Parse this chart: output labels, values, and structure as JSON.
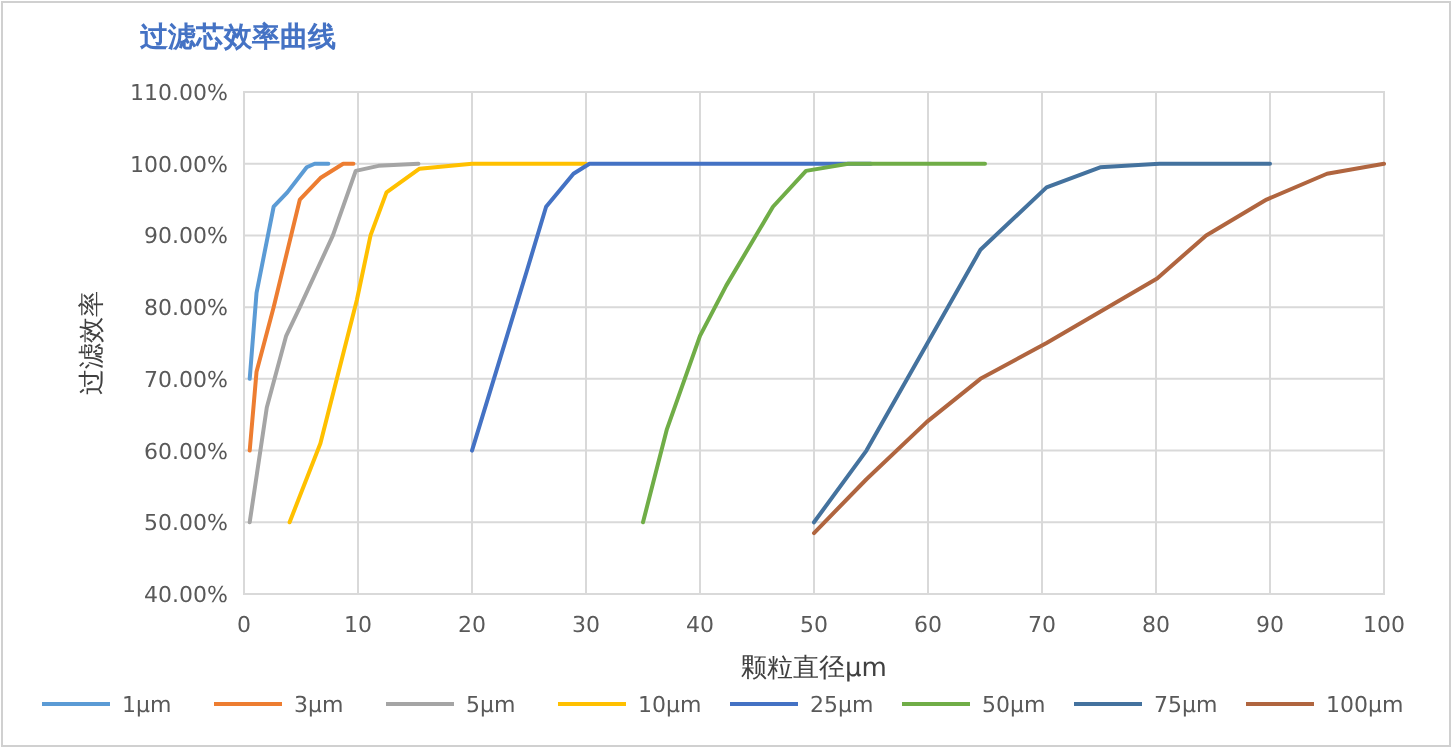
{
  "chart_data": {
    "type": "line",
    "title": "过滤芯效率曲线",
    "xlabel": "颗粒直径μm",
    "ylabel": "过滤效率",
    "xlim": [
      0,
      100
    ],
    "xticks": [
      0,
      10,
      20,
      30,
      40,
      50,
      60,
      70,
      80,
      90,
      100
    ],
    "ylim": [
      40,
      110
    ],
    "yticks": [
      {
        "value": 40,
        "label": "40.00%"
      },
      {
        "value": 50,
        "label": "50.00%"
      },
      {
        "value": 60,
        "label": "60.00%"
      },
      {
        "value": 70,
        "label": "70.00%"
      },
      {
        "value": 80,
        "label": "80.00%"
      },
      {
        "value": 90,
        "label": "90.00%"
      },
      {
        "value": 100,
        "label": "100.00%"
      },
      {
        "value": 110,
        "label": "110.00%"
      }
    ],
    "grid": true,
    "legend": "bottom",
    "marker": "none",
    "line_style": "solid",
    "series": [
      {
        "name": "1μm",
        "color": "#5b9bd5",
        "x": [
          0.5,
          1.1,
          2.6,
          3.8,
          5.5,
          6.2,
          7.4
        ],
        "values": [
          70,
          82,
          94,
          96,
          99.5,
          100,
          100
        ]
      },
      {
        "name": "3μm",
        "color": "#ed7d31",
        "x": [
          0.5,
          1.1,
          2.6,
          4.9,
          6.7,
          8.7,
          9.6
        ],
        "values": [
          60,
          71,
          80,
          95,
          98,
          100,
          100
        ]
      },
      {
        "name": "5μm",
        "color": "#a5a5a5",
        "x": [
          0.5,
          2,
          3.7,
          4.9,
          7.8,
          9.8,
          11.8,
          15.3
        ],
        "values": [
          50,
          66,
          76,
          80,
          90,
          99,
          99.7,
          100
        ]
      },
      {
        "name": "10μm",
        "color": "#ffc000",
        "x": [
          4,
          6.7,
          9.9,
          11.1,
          12.5,
          15.4,
          20,
          30
        ],
        "values": [
          50,
          61,
          81,
          90,
          96,
          99.3,
          100,
          100
        ]
      },
      {
        "name": "25μm",
        "color": "#4472c4",
        "x": [
          20,
          24.8,
          26.5,
          28.9,
          30.3,
          40,
          55
        ],
        "values": [
          60,
          85,
          94,
          98.6,
          100,
          100,
          100
        ]
      },
      {
        "name": "50μm",
        "color": "#70ad47",
        "x": [
          35,
          37.1,
          40,
          42.3,
          46.4,
          49.3,
          53,
          65
        ],
        "values": [
          50,
          63,
          76,
          83,
          94,
          99,
          100,
          100
        ]
      },
      {
        "name": "75μm",
        "color": "#44729e",
        "x": [
          50,
          54.6,
          59.6,
          64.6,
          70.4,
          75.1,
          80.3,
          90
        ],
        "values": [
          50,
          60,
          74,
          88,
          96.7,
          99.5,
          100,
          100
        ]
      },
      {
        "name": "100μm",
        "color": "#b0653f",
        "x": [
          50,
          54.6,
          59.9,
          64.6,
          70.4,
          80.1,
          84.4,
          89.7,
          95,
          100
        ],
        "values": [
          48.5,
          56,
          64,
          70,
          75,
          84,
          90,
          95,
          98.6,
          100
        ]
      }
    ]
  }
}
